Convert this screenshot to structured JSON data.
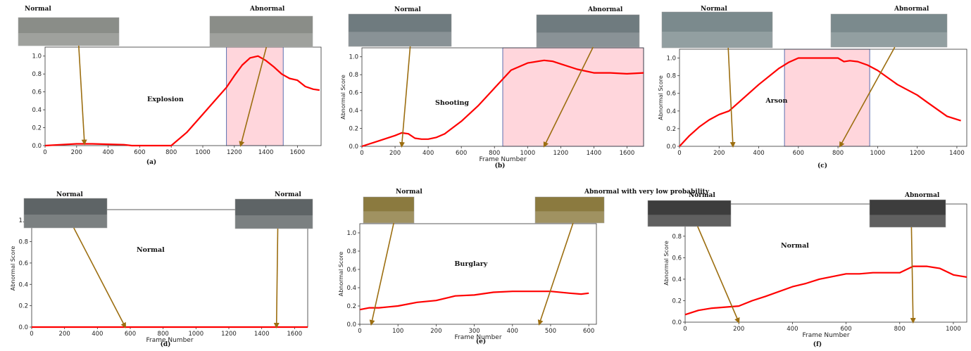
{
  "accent": "#ff0000",
  "highlight_color": "#ffd6dc",
  "arrow_color": "#9c6e10",
  "chart_data": [
    {
      "type": "line",
      "panel_label": "(a)",
      "title": "Explosion",
      "xlabel": "",
      "ylabel": "",
      "xticks": [
        0,
        200,
        400,
        600,
        800,
        1000,
        1200,
        1400,
        1600
      ],
      "yticks": [
        0.0,
        0.2,
        0.4,
        0.6,
        0.8,
        1.0
      ],
      "xlim": [
        0,
        1750
      ],
      "ylim": [
        0,
        1.1
      ],
      "show_axis_labels": false,
      "highlight": [
        1150,
        1510
      ],
      "thumbs": [
        {
          "label": "Normal",
          "target": [
            250,
            0.02
          ]
        },
        {
          "label": "Abnormal",
          "target": [
            1240,
            0.0
          ]
        }
      ],
      "series": [
        {
          "x": [
            0,
            100,
            200,
            300,
            400,
            500,
            550,
            600,
            700,
            800,
            900,
            1000,
            1100,
            1150,
            1200,
            1250,
            1300,
            1350,
            1400,
            1450,
            1500,
            1550,
            1600,
            1650,
            1700,
            1740
          ],
          "y": [
            0.0,
            0.01,
            0.02,
            0.02,
            0.015,
            0.01,
            0.0,
            0.0,
            0.0,
            0.0,
            0.15,
            0.35,
            0.55,
            0.65,
            0.78,
            0.9,
            0.98,
            1.0,
            0.95,
            0.88,
            0.8,
            0.75,
            0.73,
            0.66,
            0.63,
            0.62
          ]
        }
      ]
    },
    {
      "type": "line",
      "panel_label": "(b)",
      "title": "Shooting",
      "xlabel": "Frame Number",
      "ylabel": "Abnormal Score",
      "xticks": [
        0,
        200,
        400,
        600,
        800,
        1000,
        1200,
        1400,
        1600
      ],
      "yticks": [
        0.0,
        0.2,
        0.4,
        0.6,
        0.8,
        1.0
      ],
      "xlim": [
        0,
        1700
      ],
      "ylim": [
        0,
        1.1
      ],
      "show_axis_labels": true,
      "highlight": [
        850,
        1700
      ],
      "thumbs": [
        {
          "label": "Normal",
          "target": [
            240,
            0.0
          ]
        },
        {
          "label": "Abnormal",
          "target": [
            1100,
            0.0
          ]
        }
      ],
      "series": [
        {
          "x": [
            0,
            100,
            200,
            240,
            280,
            320,
            360,
            400,
            450,
            500,
            600,
            700,
            750,
            800,
            850,
            900,
            1000,
            1100,
            1150,
            1200,
            1300,
            1400,
            1500,
            1600,
            1700
          ],
          "y": [
            0.0,
            0.06,
            0.12,
            0.15,
            0.14,
            0.09,
            0.08,
            0.08,
            0.1,
            0.14,
            0.28,
            0.45,
            0.55,
            0.65,
            0.75,
            0.85,
            0.93,
            0.96,
            0.95,
            0.92,
            0.86,
            0.82,
            0.82,
            0.81,
            0.82
          ]
        }
      ]
    },
    {
      "type": "line",
      "panel_label": "(c)",
      "title": "Arson",
      "xlabel": "",
      "ylabel": "Abnormal Score",
      "xticks": [
        0,
        200,
        400,
        600,
        800,
        1000,
        1200,
        1400
      ],
      "yticks": [
        0.0,
        0.2,
        0.4,
        0.6,
        0.8,
        1.0
      ],
      "xlim": [
        0,
        1450
      ],
      "ylim": [
        0,
        1.1
      ],
      "show_axis_labels": true,
      "highlight": [
        530,
        960
      ],
      "thumbs": [
        {
          "label": "Normal",
          "target": [
            270,
            0.0
          ]
        },
        {
          "label": "Abnormal",
          "target": [
            810,
            0.0
          ]
        }
      ],
      "series": [
        {
          "x": [
            0,
            50,
            100,
            150,
            200,
            250,
            300,
            400,
            500,
            550,
            600,
            700,
            800,
            830,
            860,
            900,
            950,
            1000,
            1050,
            1100,
            1150,
            1200,
            1250,
            1300,
            1350,
            1420
          ],
          "y": [
            0.0,
            0.12,
            0.22,
            0.3,
            0.36,
            0.4,
            0.5,
            0.7,
            0.88,
            0.95,
            1.0,
            1.0,
            1.0,
            0.96,
            0.97,
            0.96,
            0.92,
            0.86,
            0.78,
            0.7,
            0.64,
            0.58,
            0.5,
            0.42,
            0.34,
            0.29
          ]
        }
      ]
    },
    {
      "type": "line",
      "panel_label": "(d)",
      "title": "Normal",
      "xlabel": "Frame Number",
      "ylabel": "Abnormal Score",
      "xticks": [
        0,
        200,
        400,
        600,
        800,
        1000,
        1200,
        1400,
        1600
      ],
      "yticks": [
        0.0,
        0.2,
        0.4,
        0.6,
        0.8,
        1.0
      ],
      "xlim": [
        0,
        1680
      ],
      "ylim": [
        0,
        1.1
      ],
      "show_axis_labels": true,
      "highlight": null,
      "thumbs": [
        {
          "label": "Normal",
          "target": [
            570,
            0.0
          ]
        },
        {
          "label": "Normal",
          "target": [
            1490,
            0.0
          ]
        }
      ],
      "series": [
        {
          "x": [
            0,
            1680
          ],
          "y": [
            0.0,
            0.0
          ]
        }
      ]
    },
    {
      "type": "line",
      "panel_label": "(e)",
      "title": "Burglary",
      "xlabel": "Frame Number",
      "ylabel": "Abnormal Score",
      "xticks": [
        0,
        100,
        200,
        300,
        400,
        500,
        600
      ],
      "yticks": [
        0.0,
        0.2,
        0.4,
        0.6,
        0.8,
        1.0
      ],
      "xlim": [
        0,
        620
      ],
      "ylim": [
        0,
        1.1
      ],
      "show_axis_labels": true,
      "highlight": null,
      "thumbs": [
        {
          "label": "Normal",
          "target": [
            30,
            0.0
          ]
        },
        {
          "label": "Abnormal with very low probability",
          "target": [
            470,
            0.0
          ]
        }
      ],
      "series": [
        {
          "x": [
            0,
            25,
            50,
            75,
            100,
            150,
            200,
            250,
            300,
            350,
            400,
            450,
            500,
            550,
            580,
            600
          ],
          "y": [
            0.16,
            0.18,
            0.18,
            0.19,
            0.2,
            0.24,
            0.26,
            0.31,
            0.32,
            0.35,
            0.36,
            0.36,
            0.36,
            0.34,
            0.33,
            0.34
          ]
        }
      ]
    },
    {
      "type": "line",
      "panel_label": "(f)",
      "title": "Normal",
      "xlabel": "Frame Number",
      "ylabel": "Abnormal Score",
      "xticks": [
        0,
        200,
        400,
        600,
        800,
        1000
      ],
      "yticks": [
        0.0,
        0.2,
        0.4,
        0.6,
        0.8,
        1.0
      ],
      "xlim": [
        0,
        1050
      ],
      "ylim": [
        0,
        1.1
      ],
      "show_axis_labels": true,
      "highlight": null,
      "thumbs": [
        {
          "label": "Normal",
          "target": [
            200,
            0.0
          ]
        },
        {
          "label": "Abnormal",
          "target": [
            850,
            0.0
          ]
        }
      ],
      "series": [
        {
          "x": [
            0,
            50,
            100,
            150,
            200,
            250,
            300,
            400,
            450,
            500,
            600,
            650,
            700,
            750,
            800,
            850,
            900,
            950,
            1000,
            1050
          ],
          "y": [
            0.07,
            0.11,
            0.13,
            0.14,
            0.15,
            0.2,
            0.24,
            0.33,
            0.36,
            0.4,
            0.45,
            0.45,
            0.46,
            0.46,
            0.46,
            0.52,
            0.52,
            0.5,
            0.44,
            0.42
          ]
        }
      ]
    }
  ]
}
